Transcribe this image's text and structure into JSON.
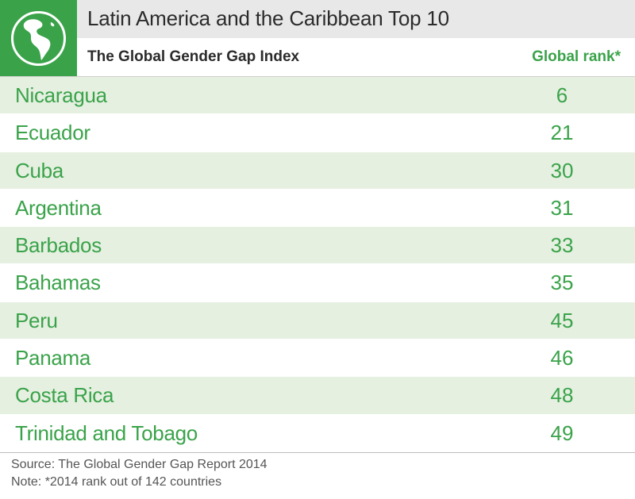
{
  "header": {
    "title": "Latin America and the Caribbean Top 10",
    "subtitle": "The Global Gender Gap Index",
    "rank_column": "Global rank*",
    "logo_icon": "globe-americas-icon"
  },
  "colors": {
    "accent": "#3aa34a",
    "stripe": "#e6f0e1",
    "title_band": "#e8e8e8"
  },
  "chart_data": {
    "type": "table",
    "title": "Latin America and the Caribbean Top 10",
    "subtitle": "The Global Gender Gap Index",
    "columns": [
      "",
      "Global rank*"
    ],
    "rows": [
      {
        "country": "Nicaragua",
        "rank": "6"
      },
      {
        "country": "Ecuador",
        "rank": "21"
      },
      {
        "country": "Cuba",
        "rank": "30"
      },
      {
        "country": "Argentina",
        "rank": "31"
      },
      {
        "country": "Barbados",
        "rank": "33"
      },
      {
        "country": "Bahamas",
        "rank": "35"
      },
      {
        "country": "Peru",
        "rank": "45"
      },
      {
        "country": "Panama",
        "rank": "46"
      },
      {
        "country": "Costa Rica",
        "rank": "48"
      },
      {
        "country": "Trinidad and Tobago",
        "rank": "49"
      }
    ]
  },
  "footer": {
    "source": "Source: The Global Gender Gap Report 2014",
    "note": "Note: *2014 rank out of 142 countries"
  }
}
